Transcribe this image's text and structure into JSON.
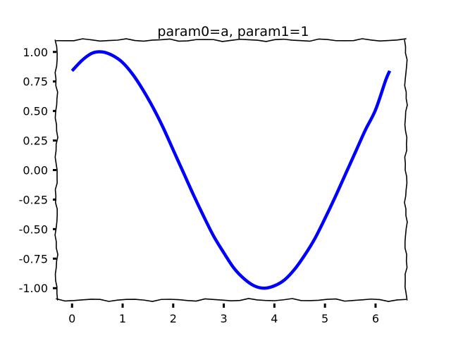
{
  "chart_data": {
    "type": "line",
    "title": "param0=a, param1=1",
    "xlabel": "",
    "ylabel": "",
    "xlim": [
      -0.31,
      6.6
    ],
    "ylim": [
      -1.1,
      1.1
    ],
    "x_ticks": [
      0,
      1,
      2,
      3,
      4,
      5,
      6
    ],
    "x_tick_labels": [
      "0",
      "1",
      "2",
      "3",
      "4",
      "5",
      "6"
    ],
    "y_ticks": [
      1.0,
      0.75,
      0.5,
      0.25,
      0.0,
      -0.25,
      -0.5,
      -0.75,
      -1.0
    ],
    "y_tick_labels": [
      "1.00",
      "0.75",
      "0.50",
      "0.25",
      "0.00",
      "-0.25",
      "-0.50",
      "-0.75",
      "-1.00"
    ],
    "grid": false,
    "style": "xkcd hand-drawn",
    "series": [
      {
        "color": "#0000ff",
        "x": [
          0.0,
          0.2,
          0.4,
          0.6,
          0.8,
          1.0,
          1.2,
          1.4,
          1.6,
          1.8,
          2.0,
          2.2,
          2.4,
          2.6,
          2.8,
          3.0,
          3.2,
          3.4,
          3.6,
          3.8,
          4.0,
          4.2,
          4.4,
          4.6,
          4.8,
          5.0,
          5.2,
          5.4,
          5.6,
          5.8,
          6.0,
          6.2,
          6.28
        ],
        "y": [
          0.84,
          0.93,
          0.99,
          1.0,
          0.97,
          0.91,
          0.81,
          0.68,
          0.53,
          0.36,
          0.17,
          -0.02,
          -0.21,
          -0.39,
          -0.56,
          -0.7,
          -0.83,
          -0.92,
          -0.98,
          -1.0,
          -0.98,
          -0.93,
          -0.84,
          -0.72,
          -0.58,
          -0.41,
          -0.23,
          -0.04,
          0.15,
          0.34,
          0.51,
          0.76,
          0.84
        ]
      }
    ]
  }
}
